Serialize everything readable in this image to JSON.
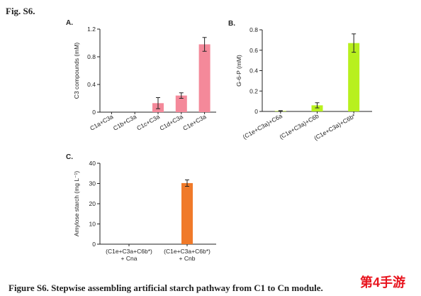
{
  "figure_label": "Fig. S6.",
  "caption": "Figure S6. Stepwise assembling artificial starch pathway from C1 to Cn module.",
  "watermark": "第4手游",
  "chart_data": [
    {
      "type": "bar",
      "panel": "A.",
      "ylabel": "C3 compounds (mM)",
      "categories": [
        "C1a+C3a",
        "C1b+C3a",
        "C1c+C3a",
        "C1d+C3a",
        "C1e+C3a"
      ],
      "values": [
        0,
        0,
        0.13,
        0.24,
        0.98
      ],
      "errors": [
        0,
        0,
        0.08,
        0.04,
        0.1
      ],
      "color": "#f4899a",
      "ylim": [
        0,
        1.2
      ],
      "yticks": [
        0,
        0.4,
        0.8,
        1.2
      ]
    },
    {
      "type": "bar",
      "panel": "B.",
      "ylabel": "G-6-P (mM)",
      "categories": [
        "(C1e+C3a)+C6a",
        "(C1e+C3a)+C6b",
        "(C1e+C3a)+C6b*"
      ],
      "values": [
        0.005,
        0.06,
        0.67
      ],
      "errors": [
        0.003,
        0.025,
        0.09
      ],
      "color": "#b8f01e",
      "ylim": [
        0,
        0.8
      ],
      "yticks": [
        0,
        0.2,
        0.4,
        0.6,
        0.8
      ]
    },
    {
      "type": "bar",
      "panel": "C.",
      "ylabel": "Amylose starch (mg L⁻¹)",
      "categories": [
        [
          "(C1e+C3a+C6b*)",
          "+ Cna"
        ],
        [
          "(C1e+C3a+C6b*)",
          "+ Cnb"
        ]
      ],
      "values": [
        0,
        30.2
      ],
      "errors": [
        0,
        1.6
      ],
      "color": "#f07a2a",
      "ylim": [
        0,
        40
      ],
      "yticks": [
        0,
        10,
        20,
        30,
        40
      ]
    }
  ]
}
